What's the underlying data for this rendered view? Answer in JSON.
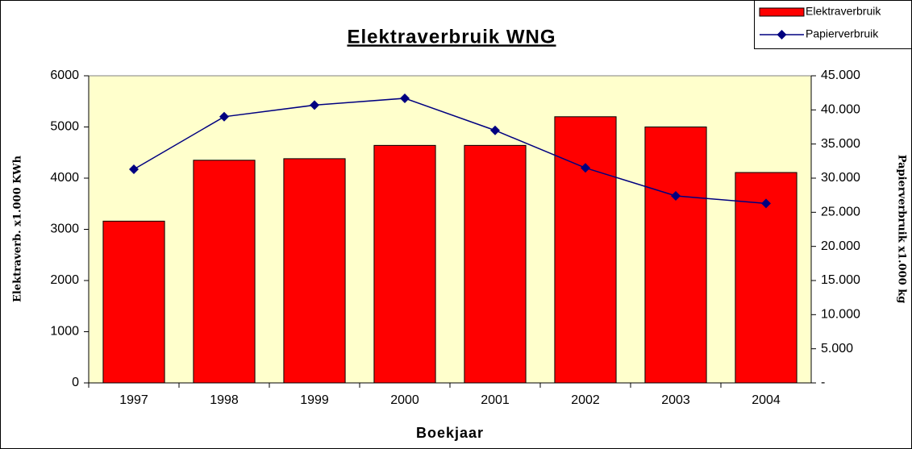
{
  "chart_data": {
    "type": "combo",
    "title": "Elektraverbruik WNG",
    "x_label": "Boekjaar",
    "y_label": "Elektraverb. x1.000 KWh",
    "y2_label": "Papierverbruik x1.000 kg",
    "categories": [
      "1997",
      "1998",
      "1999",
      "2000",
      "2001",
      "2002",
      "2003",
      "2004"
    ],
    "series": [
      {
        "name": "Elektraverbruik",
        "type": "bar",
        "axis": "y",
        "color": "#ff0000",
        "values": [
          3160,
          4350,
          4380,
          4640,
          4640,
          5200,
          5000,
          4110
        ]
      },
      {
        "name": "Papierverbruik",
        "type": "line",
        "axis": "y2",
        "color": "#000080",
        "values": [
          31300,
          39000,
          40700,
          41700,
          37000,
          31500,
          27400,
          26300
        ]
      }
    ],
    "ylim": [
      0,
      6000
    ],
    "yticks": [
      0,
      1000,
      2000,
      3000,
      4000,
      5000,
      6000
    ],
    "y2lim": [
      0,
      45000
    ],
    "y2ticks": [
      {
        "value": 0,
        "label": "-"
      },
      {
        "value": 5000,
        "label": "5.000"
      },
      {
        "value": 10000,
        "label": "10.000"
      },
      {
        "value": 15000,
        "label": "15.000"
      },
      {
        "value": 20000,
        "label": "20.000"
      },
      {
        "value": 25000,
        "label": "25.000"
      },
      {
        "value": 30000,
        "label": "30.000"
      },
      {
        "value": 35000,
        "label": "35.000"
      },
      {
        "value": 40000,
        "label": "40.000"
      },
      {
        "value": 45000,
        "label": "45.000"
      }
    ],
    "legend": "top-right",
    "background": "#ffffcc"
  }
}
